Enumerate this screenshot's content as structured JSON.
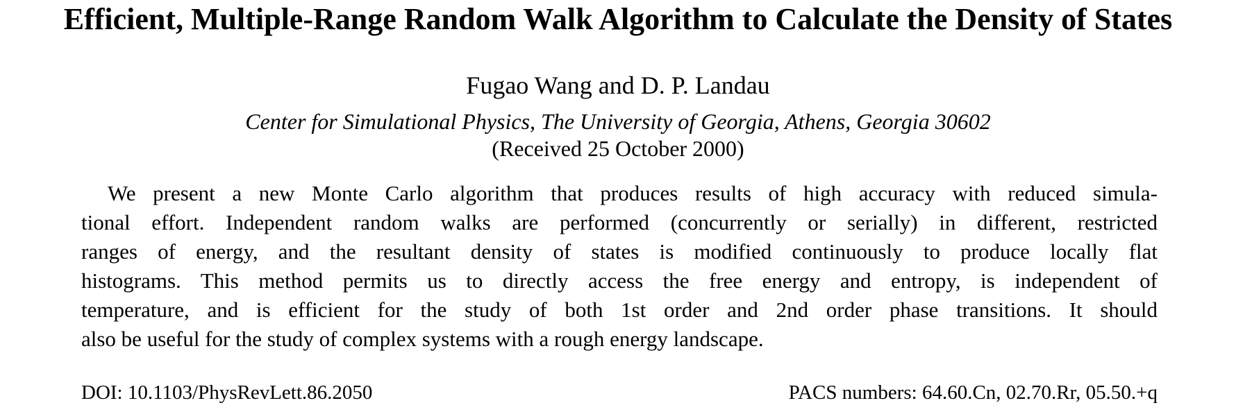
{
  "paper": {
    "title": "Efficient, Multiple-Range Random Walk Algorithm to Calculate the Density of States",
    "authors": "Fugao Wang and D. P. Landau",
    "affiliation": "Center for Simulational Physics, The University of Georgia, Athens, Georgia 30602",
    "received": "(Received 25 October 2000)",
    "abstract_lines": [
      "We present a new Monte Carlo algorithm that produces results of high accuracy with reduced simula-",
      "tional effort. Independent random walks are performed (concurrently or serially) in different, restricted",
      "ranges of energy, and the resultant density of states is modified continuously to produce locally flat",
      "histograms. This method permits us to directly access the free energy and entropy, is independent of",
      "temperature, and is efficient for the study of both 1st order and 2nd order phase transitions. It should",
      "also be useful for the study of complex systems with a rough energy landscape."
    ],
    "doi": "DOI: 10.1103/PhysRevLett.86.2050",
    "pacs": "PACS numbers: 64.60.Cn, 02.70.Rr, 05.50.+q"
  }
}
